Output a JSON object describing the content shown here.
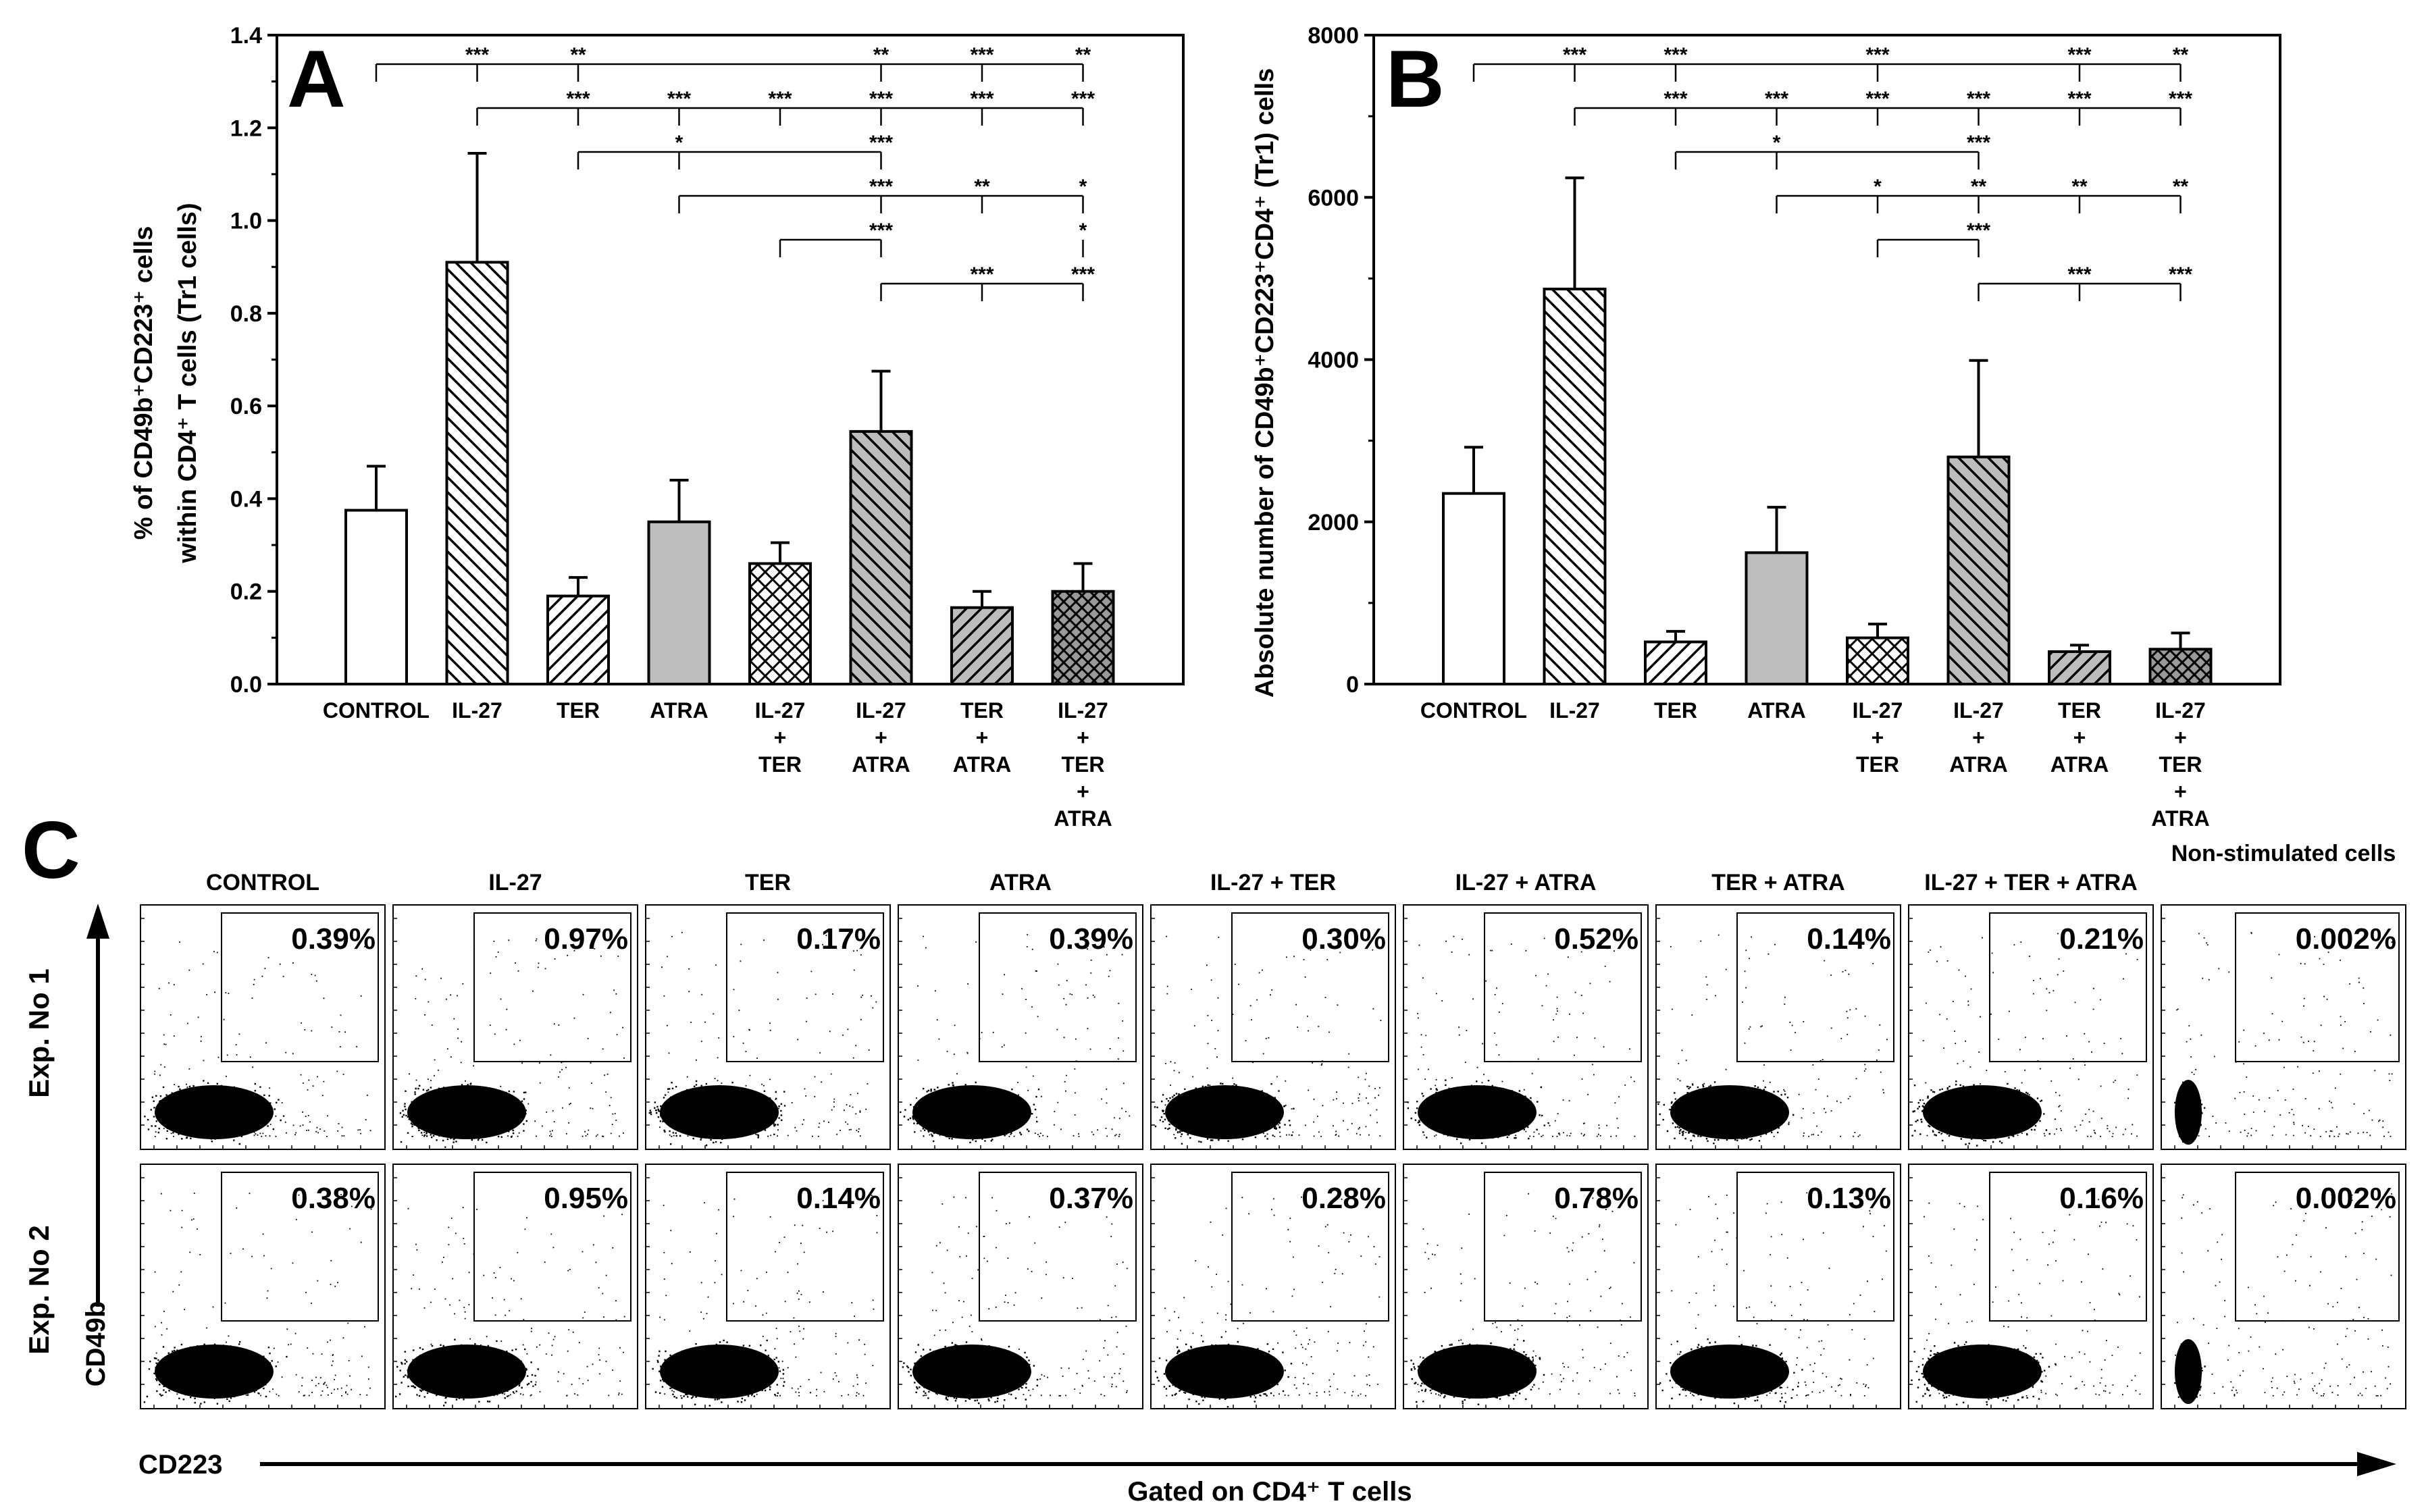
{
  "panel_labels": {
    "a": "A",
    "b": "B",
    "c": "C"
  },
  "chart_data": [
    {
      "type": "bar",
      "id": "A",
      "ylabel_line1": "% of CD49b⁺CD223⁺ cells",
      "ylabel_line2": "within CD4⁺ T cells (Tr1 cells)",
      "ylim": [
        0,
        1.4
      ],
      "yticks": [
        "0.0",
        "0.2",
        "0.4",
        "0.6",
        "0.8",
        "1.0",
        "1.2",
        "1.4"
      ],
      "categories": [
        [
          "CONTROL"
        ],
        [
          "IL-27"
        ],
        [
          "TER"
        ],
        [
          "ATRA"
        ],
        [
          "IL-27",
          "+",
          "TER"
        ],
        [
          "IL-27",
          "+",
          "ATRA"
        ],
        [
          "TER",
          "+",
          "ATRA"
        ],
        [
          "IL-27",
          "+",
          "TER",
          "+",
          "ATRA"
        ]
      ],
      "patterns": [
        "white",
        "diag-back",
        "diag-fwd",
        "gray",
        "cross",
        "gray-back",
        "gray-fwd",
        "gray-cross"
      ],
      "values": [
        0.375,
        0.91,
        0.19,
        0.35,
        0.26,
        0.545,
        0.165,
        0.2
      ],
      "errors": [
        0.095,
        0.235,
        0.04,
        0.09,
        0.045,
        0.13,
        0.035,
        0.06
      ],
      "sig_brackets": [
        {
          "from": 0,
          "marks": [
            [
              1,
              "***"
            ],
            [
              2,
              "**"
            ],
            [
              5,
              "**"
            ],
            [
              6,
              "***"
            ],
            [
              7,
              "**"
            ]
          ],
          "to": 7
        },
        {
          "from": 1,
          "marks": [
            [
              2,
              "***"
            ],
            [
              3,
              "***"
            ],
            [
              4,
              "***"
            ],
            [
              5,
              "***"
            ],
            [
              6,
              "***"
            ],
            [
              7,
              "***"
            ]
          ],
          "to": 7
        },
        {
          "from": 2,
          "marks": [
            [
              3,
              "*"
            ],
            [
              5,
              "***"
            ]
          ],
          "to": 5
        },
        {
          "from": 3,
          "marks": [
            [
              5,
              "***"
            ],
            [
              6,
              "**"
            ],
            [
              7,
              "*"
            ]
          ],
          "to": 7
        },
        {
          "from": 4,
          "marks": [
            [
              5,
              "***"
            ],
            [
              7,
              "*"
            ]
          ],
          "to": 5
        },
        {
          "from": 5,
          "marks": [
            [
              6,
              "***"
            ],
            [
              7,
              "***"
            ]
          ],
          "to": 7
        }
      ]
    },
    {
      "type": "bar",
      "id": "B",
      "ylabel_line1": "Absolute number of CD49b⁺CD223⁺CD4⁺ (Tr1) cells",
      "ylim": [
        0,
        8000
      ],
      "yticks": [
        "0",
        "2000",
        "4000",
        "6000",
        "8000"
      ],
      "categories": [
        [
          "CONTROL"
        ],
        [
          "IL-27"
        ],
        [
          "TER"
        ],
        [
          "ATRA"
        ],
        [
          "IL-27",
          "+",
          "TER"
        ],
        [
          "IL-27",
          "+",
          "ATRA"
        ],
        [
          "TER",
          "+",
          "ATRA"
        ],
        [
          "IL-27",
          "+",
          "TER",
          "+",
          "ATRA"
        ]
      ],
      "patterns": [
        "white",
        "diag-back",
        "diag-fwd",
        "gray",
        "cross",
        "gray-back",
        "gray-fwd",
        "gray-cross"
      ],
      "values": [
        2350,
        4870,
        520,
        1620,
        570,
        2800,
        400,
        430
      ],
      "errors": [
        570,
        1370,
        130,
        560,
        170,
        1190,
        80,
        200
      ],
      "sig_brackets": [
        {
          "from": 0,
          "marks": [
            [
              1,
              "***"
            ],
            [
              2,
              "***"
            ],
            [
              4,
              "***"
            ],
            [
              6,
              "***"
            ],
            [
              7,
              "**"
            ]
          ],
          "to": 7
        },
        {
          "from": 1,
          "marks": [
            [
              2,
              "***"
            ],
            [
              3,
              "***"
            ],
            [
              4,
              "***"
            ],
            [
              5,
              "***"
            ],
            [
              6,
              "***"
            ],
            [
              7,
              "***"
            ]
          ],
          "to": 7
        },
        {
          "from": 2,
          "marks": [
            [
              3,
              "*"
            ],
            [
              5,
              "***"
            ]
          ],
          "to": 5
        },
        {
          "from": 3,
          "marks": [
            [
              4,
              "*"
            ],
            [
              5,
              "**"
            ],
            [
              6,
              "**"
            ],
            [
              7,
              "**"
            ]
          ],
          "to": 7
        },
        {
          "from": 4,
          "marks": [
            [
              5,
              "***"
            ]
          ],
          "to": 5
        },
        {
          "from": 5,
          "marks": [
            [
              6,
              "***"
            ],
            [
              7,
              "***"
            ]
          ],
          "to": 7
        }
      ]
    },
    {
      "type": "scatter",
      "id": "C",
      "conditions": [
        "CONTROL",
        "IL-27",
        "TER",
        "ATRA",
        "IL-27 + TER",
        "IL-27 + ATRA",
        "TER + ATRA",
        "IL-27 + TER + ATRA",
        "Non-stimulated cells"
      ],
      "rows": [
        {
          "label": "Exp. No 1",
          "percentages": [
            "0.39%",
            "0.97%",
            "0.17%",
            "0.39%",
            "0.30%",
            "0.52%",
            "0.14%",
            "0.21%",
            "0.002%"
          ]
        },
        {
          "label": "Exp. No 2",
          "percentages": [
            "0.38%",
            "0.95%",
            "0.14%",
            "0.37%",
            "0.28%",
            "0.78%",
            "0.13%",
            "0.16%",
            "0.002%"
          ]
        }
      ],
      "yaxis_label": "CD49b",
      "xaxis_label": "CD223",
      "gate_caption": "Gated on CD4⁺ T cells"
    }
  ]
}
